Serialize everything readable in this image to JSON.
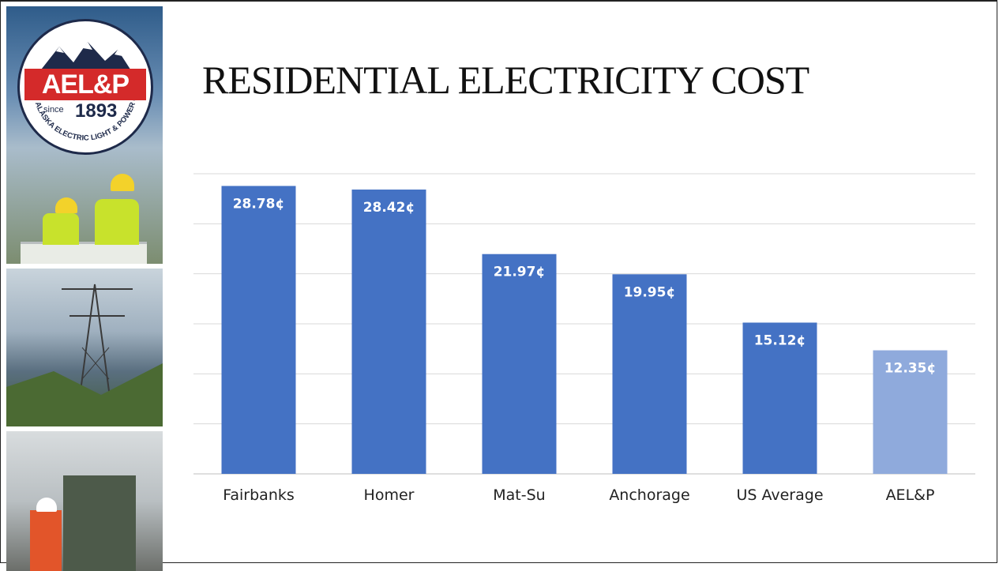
{
  "logo": {
    "name": "AEL&P",
    "since_label": "since",
    "year": "1893",
    "arc_text": "ALASKA ELECTRIC LIGHT & POWER CO."
  },
  "title": "RESIDENTIAL ELECTRICITY COST",
  "colors": {
    "bar": "#4472C4",
    "bar_highlight": "#8FAADC",
    "grid": "#d9d9d9",
    "label_text": "#ffffff",
    "axis_text": "#222222"
  },
  "chart_data": {
    "type": "bar",
    "title": "",
    "xlabel": "",
    "ylabel": "",
    "categories": [
      "Fairbanks",
      "Homer",
      "Mat-Su",
      "Anchorage",
      "US Average",
      "AEL&P"
    ],
    "values": [
      28.78,
      28.42,
      21.97,
      19.95,
      15.12,
      12.35
    ],
    "data_labels": [
      "28.78¢",
      "28.42¢",
      "21.97¢",
      "19.95¢",
      "15.12¢",
      "12.35¢"
    ],
    "highlight_category": "AEL&P",
    "ylim": [
      0,
      30
    ],
    "grid": true,
    "legend": false
  }
}
